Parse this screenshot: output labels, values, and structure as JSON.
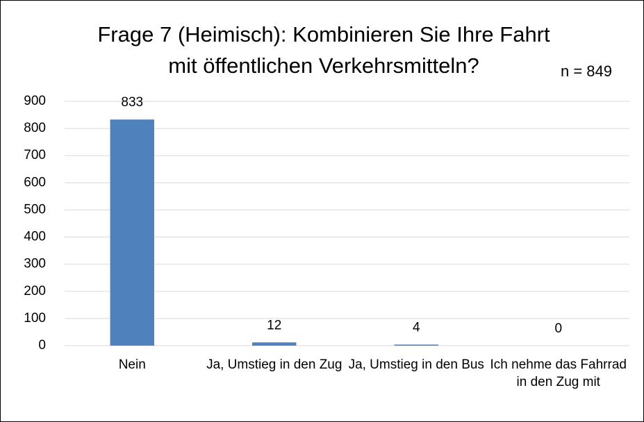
{
  "chart_data": {
    "type": "bar",
    "title": "Frage 7 (Heimisch): Kombinieren Sie Ihre Fahrt mit öffentlichen Verkehrsmitteln?",
    "annotation": "n = 849",
    "categories": [
      "Nein",
      "Ja, Umstieg in den Zug",
      "Ja, Umstieg in den Bus",
      "Ich nehme das Fahrrad in den Zug mit"
    ],
    "values": [
      833,
      12,
      4,
      0
    ],
    "color": "#4f81bd",
    "ylim": [
      0,
      900
    ],
    "yticks": [
      0,
      100,
      200,
      300,
      400,
      500,
      600,
      700,
      800,
      900
    ],
    "grid": true
  }
}
